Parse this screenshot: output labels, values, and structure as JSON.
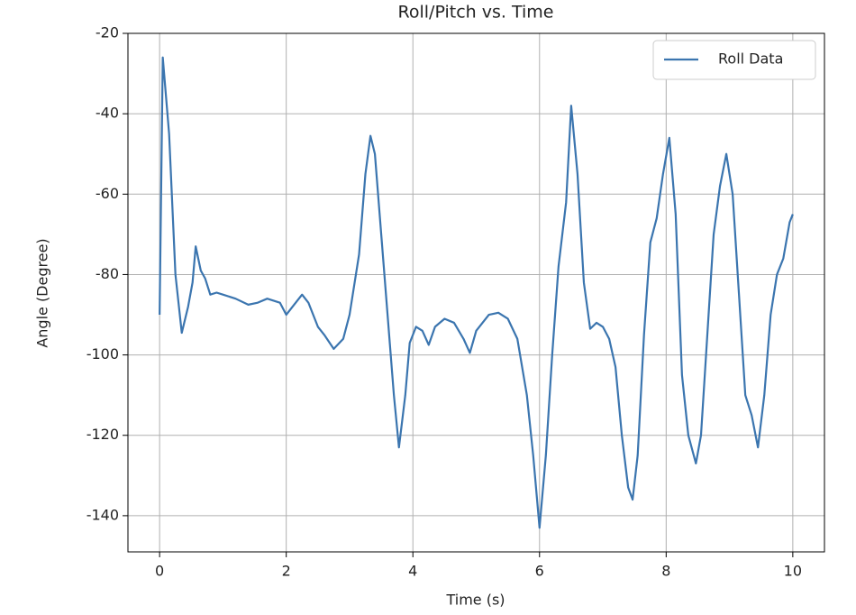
{
  "chart_data": {
    "type": "line",
    "title": "Roll/Pitch vs. Time",
    "xlabel": "Time (s)",
    "ylabel": "Angle (Degree)",
    "x": [
      0,
      0.05,
      0.15,
      0.25,
      0.35,
      0.45,
      0.52,
      0.57,
      0.65,
      0.72,
      0.8,
      0.9,
      1.0,
      1.2,
      1.4,
      1.55,
      1.7,
      1.9,
      2.0,
      2.1,
      2.25,
      2.35,
      2.5,
      2.6,
      2.75,
      2.9,
      3.0,
      3.15,
      3.25,
      3.33,
      3.4,
      3.5,
      3.6,
      3.7,
      3.78,
      3.88,
      3.95,
      4.05,
      4.15,
      4.25,
      4.35,
      4.5,
      4.65,
      4.8,
      4.9,
      5.0,
      5.2,
      5.35,
      5.5,
      5.65,
      5.8,
      5.9,
      6.0,
      6.1,
      6.2,
      6.3,
      6.42,
      6.5,
      6.6,
      6.7,
      6.8,
      6.9,
      7.0,
      7.1,
      7.2,
      7.3,
      7.4,
      7.47,
      7.55,
      7.65,
      7.75,
      7.85,
      7.95,
      8.05,
      8.15,
      8.25,
      8.35,
      8.47,
      8.55,
      8.65,
      8.75,
      8.85,
      8.95,
      9.05,
      9.15,
      9.25,
      9.35,
      9.45,
      9.55,
      9.65,
      9.75,
      9.85,
      9.95,
      10.0
    ],
    "series": [
      {
        "name": "Roll Data",
        "color": "#3b75af",
        "values": [
          -90,
          -26,
          -45,
          -80,
          -94.5,
          -88,
          -82,
          -73,
          -79,
          -81,
          -85,
          -84.5,
          -85,
          -86,
          -87.5,
          -87,
          -86,
          -87,
          -90,
          -88,
          -85,
          -87,
          -93,
          -95,
          -98.5,
          -96,
          -90,
          -75,
          -55,
          -45.5,
          -50,
          -70,
          -90,
          -110,
          -123,
          -110,
          -97,
          -93,
          -94,
          -97.5,
          -93,
          -91,
          -92,
          -96,
          -99.5,
          -94,
          -90,
          -89.5,
          -91,
          -96,
          -110,
          -125,
          -143,
          -125,
          -100,
          -78,
          -62,
          -38,
          -55,
          -82,
          -93.5,
          -92,
          -93,
          -96,
          -103,
          -120,
          -133,
          -136,
          -125,
          -95,
          -72,
          -66,
          -55,
          -46,
          -65,
          -105,
          -120,
          -127,
          -120,
          -95,
          -70,
          -58,
          -50,
          -60,
          -85,
          -110,
          -115,
          -123,
          -110,
          -90,
          -80,
          -76,
          -67,
          -65
        ]
      }
    ],
    "xlim": [
      -0.5,
      10.5
    ],
    "ylim": [
      -149,
      -20
    ],
    "xticks": [
      0,
      2,
      4,
      6,
      8,
      10
    ],
    "yticks": [
      -20,
      -40,
      -60,
      -80,
      -100,
      -120,
      -140
    ],
    "grid": true,
    "legend": "upper right"
  }
}
